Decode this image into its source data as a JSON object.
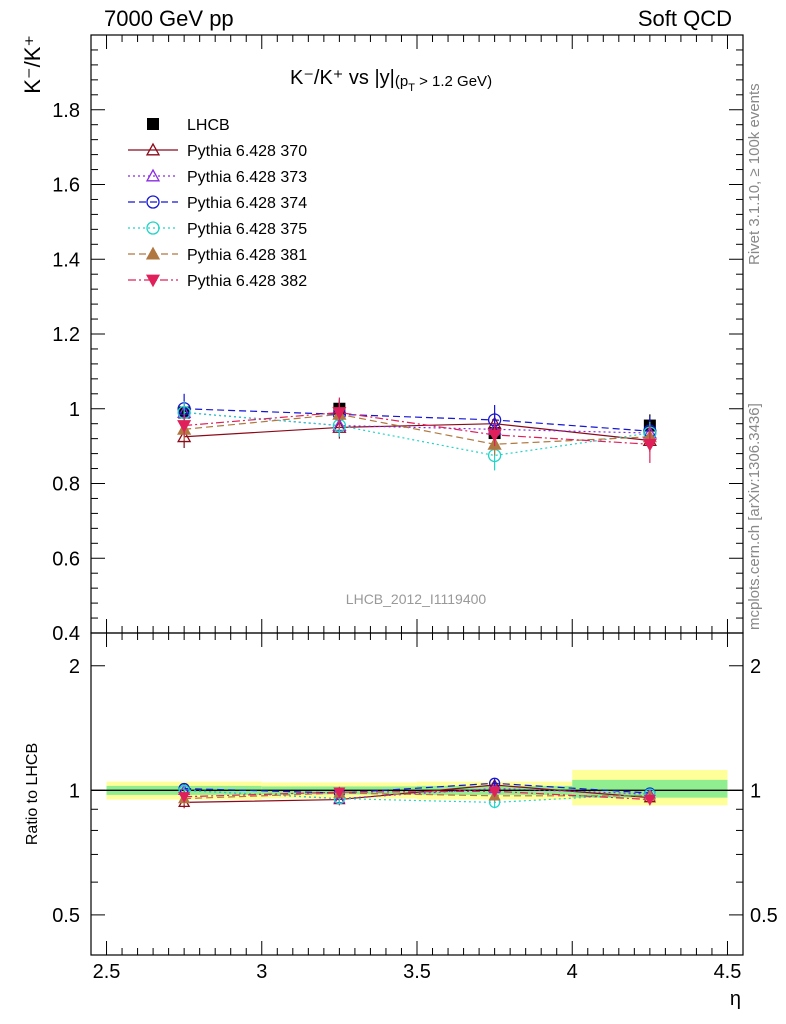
{
  "header": {
    "left": "7000 GeV pp",
    "right": "Soft QCD"
  },
  "side_labels": {
    "rivet": "Rivet 3.1.10, ≥ 100k events",
    "mcplots": "mcplots.cern.ch [arXiv:1306.3436]"
  },
  "chart_data": [
    {
      "type": "scatter",
      "title_main": "K⁻/K⁺ vs |y|",
      "title_sub": "(p",
      "title_sub_index": "T",
      "title_sub_rest": " > 1.2 GeV)",
      "ylabel": "K⁻/K⁺",
      "watermark": "LHCB_2012_I1119400",
      "ylim": [
        0.4,
        2.0
      ],
      "xlim": [
        2.45,
        4.55
      ],
      "yticks": [
        0.4,
        0.6,
        0.8,
        1.0,
        1.2,
        1.4,
        1.6,
        1.8
      ],
      "ytick_labels": [
        "0.4",
        "0.6",
        "0.8",
        "1",
        "1.2",
        "1.4",
        "1.6",
        "1.8"
      ],
      "legend_position": "top-left",
      "series": [
        {
          "name": "LHCB",
          "color": "#000000",
          "marker": "square-filled",
          "line": "none",
          "x": [
            2.75,
            3.25,
            3.75,
            4.25
          ],
          "y": [
            0.99,
            1.0,
            0.935,
            0.955
          ],
          "err": [
            0.02,
            0.02,
            0.025,
            0.03
          ]
        },
        {
          "name": "Pythia 6.428 370",
          "color": "#8b0a1a",
          "marker": "triangle-open",
          "line": "solid",
          "x": [
            2.75,
            3.25,
            3.75,
            4.25
          ],
          "y": [
            0.925,
            0.95,
            0.96,
            0.915
          ],
          "err": [
            0.03,
            0.03,
            0.03,
            0.03
          ]
        },
        {
          "name": "Pythia 6.428 373",
          "color": "#8a2be2",
          "marker": "triangle-open",
          "line": "dotted",
          "x": [
            2.75,
            3.25,
            3.75,
            4.25
          ],
          "y": [
            0.99,
            0.955,
            0.945,
            0.935
          ],
          "err": [
            0.03,
            0.03,
            0.03,
            0.03
          ]
        },
        {
          "name": "Pythia 6.428 374",
          "color": "#1515d5",
          "marker": "circle-open",
          "line": "dashed",
          "x": [
            2.75,
            3.25,
            3.75,
            4.25
          ],
          "y": [
            1.0,
            0.985,
            0.97,
            0.94
          ],
          "err": [
            0.04,
            0.04,
            0.04,
            0.04
          ]
        },
        {
          "name": "Pythia 6.428 375",
          "color": "#22d3c6",
          "marker": "circle-open",
          "line": "dotted",
          "x": [
            2.75,
            3.25,
            3.75,
            4.25
          ],
          "y": [
            0.99,
            0.955,
            0.875,
            0.935
          ],
          "err": [
            0.03,
            0.03,
            0.04,
            0.03
          ]
        },
        {
          "name": "Pythia 6.428 381",
          "color": "#b07840",
          "marker": "triangle-filled",
          "line": "dashed",
          "x": [
            2.75,
            3.25,
            3.75,
            4.25
          ],
          "y": [
            0.945,
            0.985,
            0.905,
            0.925
          ],
          "err": [
            0.03,
            0.04,
            0.03,
            0.03
          ]
        },
        {
          "name": "Pythia 6.428 382",
          "color": "#e0205a",
          "marker": "triangle-down-filled",
          "line": "dashdot",
          "x": [
            2.75,
            3.25,
            3.75,
            4.25
          ],
          "y": [
            0.955,
            0.99,
            0.93,
            0.905
          ],
          "err": [
            0.03,
            0.04,
            0.03,
            0.05
          ]
        }
      ]
    },
    {
      "type": "scatter",
      "ylabel": "Ratio to LHCB",
      "xlabel": "η",
      "ylim": [
        0.4,
        2.4
      ],
      "xlim": [
        2.45,
        4.55
      ],
      "yticks": [
        0.5,
        1.0,
        2.0
      ],
      "ytick_labels": [
        "0.5",
        "1",
        "2"
      ],
      "xticks": [
        2.5,
        3.0,
        3.5,
        4.0,
        4.5
      ],
      "xtick_labels": [
        "2.5",
        "3",
        "3.5",
        "4",
        "4.5"
      ],
      "bands": [
        {
          "x": [
            2.5,
            3.0
          ],
          "inner": [
            0.975,
            1.025
          ],
          "outer": [
            0.95,
            1.05
          ]
        },
        {
          "x": [
            3.0,
            3.5
          ],
          "inner": [
            0.978,
            1.022
          ],
          "outer": [
            0.955,
            1.045
          ]
        },
        {
          "x": [
            3.5,
            4.0
          ],
          "inner": [
            0.975,
            1.025
          ],
          "outer": [
            0.95,
            1.05
          ]
        },
        {
          "x": [
            4.0,
            4.5
          ],
          "inner": [
            0.96,
            1.06
          ],
          "outer": [
            0.92,
            1.12
          ]
        }
      ],
      "band_colors": {
        "inner": "#90ee90",
        "outer": "#ffff99"
      },
      "series": [
        {
          "name": "Pythia 6.428 370",
          "x": [
            2.75,
            3.25,
            3.75,
            4.25
          ],
          "y": [
            0.935,
            0.95,
            1.03,
            0.96
          ]
        },
        {
          "name": "Pythia 6.428 373",
          "x": [
            2.75,
            3.25,
            3.75,
            4.25
          ],
          "y": [
            1.0,
            0.955,
            1.01,
            0.98
          ]
        },
        {
          "name": "Pythia 6.428 374",
          "x": [
            2.75,
            3.25,
            3.75,
            4.25
          ],
          "y": [
            1.01,
            0.985,
            1.04,
            0.985
          ]
        },
        {
          "name": "Pythia 6.428 375",
          "x": [
            2.75,
            3.25,
            3.75,
            4.25
          ],
          "y": [
            1.0,
            0.955,
            0.935,
            0.98
          ]
        },
        {
          "name": "Pythia 6.428 381",
          "x": [
            2.75,
            3.25,
            3.75,
            4.25
          ],
          "y": [
            0.955,
            0.985,
            0.97,
            0.97
          ]
        },
        {
          "name": "Pythia 6.428 382",
          "x": [
            2.75,
            3.25,
            3.75,
            4.25
          ],
          "y": [
            0.965,
            0.99,
            0.995,
            0.95
          ]
        }
      ]
    }
  ]
}
